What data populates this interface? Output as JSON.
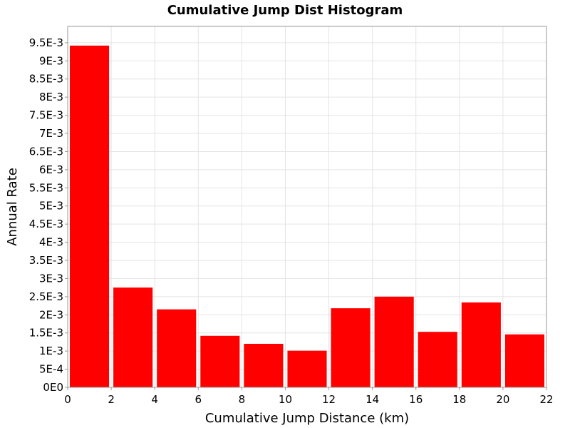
{
  "chart_data": {
    "type": "bar",
    "title": "Cumulative Jump Dist Histogram",
    "xlabel": "Cumulative Jump Distance (km)",
    "ylabel": "Annual Rate",
    "xlim": [
      0,
      22
    ],
    "ylim": [
      0,
      0.00995
    ],
    "grid": true,
    "color": "#ff0000",
    "x_ticks": [
      0,
      2,
      4,
      6,
      8,
      10,
      12,
      14,
      16,
      18,
      20,
      22
    ],
    "x_tick_labels": [
      "0",
      "2",
      "4",
      "6",
      "8",
      "10",
      "12",
      "14",
      "16",
      "18",
      "20",
      "22"
    ],
    "y_ticks": [
      0,
      0.0005,
      0.001,
      0.0015,
      0.002,
      0.0025,
      0.003,
      0.0035,
      0.004,
      0.0045,
      0.005,
      0.0055,
      0.006,
      0.0065,
      0.007,
      0.0075,
      0.008,
      0.0085,
      0.009,
      0.0095
    ],
    "y_tick_labels": [
      "0E0",
      "5E-4",
      "1E-3",
      "1.5E-3",
      "2E-3",
      "2.5E-3",
      "3E-3",
      "3.5E-3",
      "4E-3",
      "4.5E-3",
      "5E-3",
      "5.5E-3",
      "6E-3",
      "6.5E-3",
      "7E-3",
      "7.5E-3",
      "8E-3",
      "8.5E-3",
      "9E-3",
      "9.5E-3"
    ],
    "bins": [
      {
        "x0": 0,
        "x1": 2,
        "value": 0.00942
      },
      {
        "x0": 2,
        "x1": 4,
        "value": 0.00275
      },
      {
        "x0": 4,
        "x1": 6,
        "value": 0.00215
      },
      {
        "x0": 6,
        "x1": 8,
        "value": 0.00142
      },
      {
        "x0": 8,
        "x1": 10,
        "value": 0.0012
      },
      {
        "x0": 10,
        "x1": 12,
        "value": 0.00101
      },
      {
        "x0": 12,
        "x1": 14,
        "value": 0.00218
      },
      {
        "x0": 14,
        "x1": 16,
        "value": 0.0025
      },
      {
        "x0": 16,
        "x1": 18,
        "value": 0.00153
      },
      {
        "x0": 18,
        "x1": 20,
        "value": 0.00234
      },
      {
        "x0": 20,
        "x1": 22,
        "value": 0.00146
      }
    ]
  }
}
